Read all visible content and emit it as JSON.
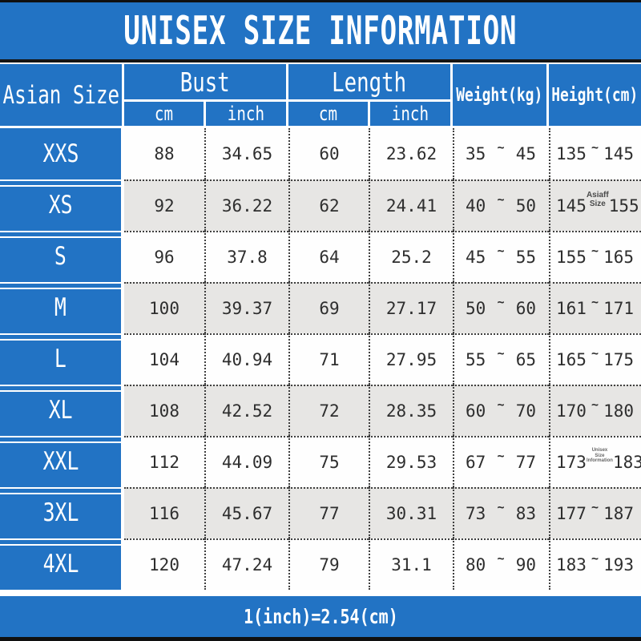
{
  "title": "UNISEX SIZE INFORMATION",
  "footer_note": "1(inch)=2.54(cm)",
  "range_separator": "~",
  "colors": {
    "blue": "#2273c4",
    "row_alt": "#e7e6e4",
    "ink": "#2e2e2e",
    "border_black": "#101010",
    "header_text": "#ffffff"
  },
  "header": {
    "size_label": "Asian Size",
    "bust_label": "Bust",
    "length_label": "Length",
    "cm_label": "cm",
    "inch_label": "inch",
    "weight_label": "Weight(kg)",
    "height_label": "Height(cm)"
  },
  "chart_data": {
    "type": "table",
    "title": "UNISEX SIZE INFORMATION",
    "note": "1(inch)=2.54(cm)",
    "columns": [
      "Asian Size",
      "Bust cm",
      "Bust inch",
      "Length cm",
      "Length inch",
      "Weight(kg)",
      "Height(cm)"
    ],
    "rows": [
      {
        "size": "XXS",
        "bust_cm": "88",
        "bust_inch": "34.65",
        "length_cm": "60",
        "length_inch": "23.62",
        "weight_min": "35",
        "weight_max": "45",
        "height_min": "135",
        "height_max": "145"
      },
      {
        "size": "XS",
        "bust_cm": "92",
        "bust_inch": "36.22",
        "length_cm": "62",
        "length_inch": "24.41",
        "weight_min": "40",
        "weight_max": "50",
        "height_min": "145",
        "height_max": "155",
        "watermark": "Asiaff Size"
      },
      {
        "size": "S",
        "bust_cm": "96",
        "bust_inch": "37.8",
        "length_cm": "64",
        "length_inch": "25.2",
        "weight_min": "45",
        "weight_max": "55",
        "height_min": "155",
        "height_max": "165"
      },
      {
        "size": "M",
        "bust_cm": "100",
        "bust_inch": "39.37",
        "length_cm": "69",
        "length_inch": "27.17",
        "weight_min": "50",
        "weight_max": "60",
        "height_min": "161",
        "height_max": "171"
      },
      {
        "size": "L",
        "bust_cm": "104",
        "bust_inch": "40.94",
        "length_cm": "71",
        "length_inch": "27.95",
        "weight_min": "55",
        "weight_max": "65",
        "height_min": "165",
        "height_max": "175"
      },
      {
        "size": "XL",
        "bust_cm": "108",
        "bust_inch": "42.52",
        "length_cm": "72",
        "length_inch": "28.35",
        "weight_min": "60",
        "weight_max": "70",
        "height_min": "170",
        "height_max": "180"
      },
      {
        "size": "XXL",
        "bust_cm": "112",
        "bust_inch": "44.09",
        "length_cm": "75",
        "length_inch": "29.53",
        "weight_min": "67",
        "weight_max": "77",
        "height_min": "173",
        "height_max": "183",
        "watermark": "Unisex Size\nInformation"
      },
      {
        "size": "3XL",
        "bust_cm": "116",
        "bust_inch": "45.67",
        "length_cm": "77",
        "length_inch": "30.31",
        "weight_min": "73",
        "weight_max": "83",
        "height_min": "177",
        "height_max": "187"
      },
      {
        "size": "4XL",
        "bust_cm": "120",
        "bust_inch": "47.24",
        "length_cm": "79",
        "length_inch": "31.1",
        "weight_min": "80",
        "weight_max": "90",
        "height_min": "183",
        "height_max": "193"
      }
    ]
  }
}
